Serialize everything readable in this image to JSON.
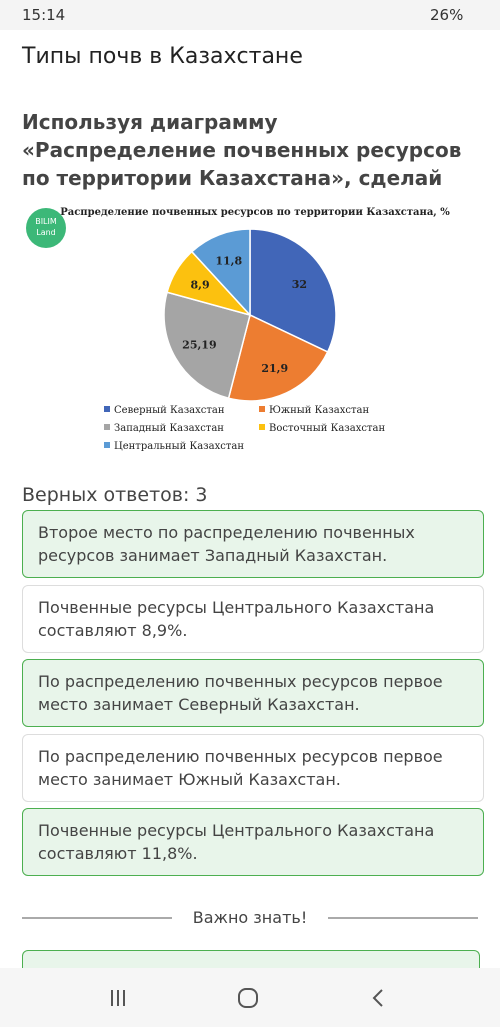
{
  "status": {
    "time": "15:14",
    "battery": "26%"
  },
  "header": {
    "title": "Типы почв в Казахстане"
  },
  "question": "Используя диаграмму «Распределение почвенных ресурсов по территории Казахстана», сделай вывод.",
  "logo": {
    "line1": "BILIM",
    "line2": "Land"
  },
  "chart_data": {
    "type": "pie",
    "title": "Распределение почвенных ресурсов по территории Казахстана, %",
    "categories": [
      "Северный Казахстан",
      "Южный Казахстан",
      "Западный Казахстан",
      "Восточный Казахстан",
      "Центральный Казахстан"
    ],
    "values": [
      32,
      21.9,
      25.19,
      8.9,
      11.8
    ],
    "value_labels": [
      "32",
      "21,9",
      "25,19",
      "8,9",
      "11,8"
    ],
    "colors": [
      "#4166b8",
      "#ed7d31",
      "#a5a5a5",
      "#fcc10f",
      "#5b9bd5"
    ]
  },
  "correct_count": "Верных ответов: 3",
  "answers": [
    {
      "text": "Второе место по распределению почвенных ресурсов занимает Западный Казахстан.",
      "selected": true
    },
    {
      "text": "Почвенные ресурсы Центрального Казахстана составляют 8,9%.",
      "selected": false
    },
    {
      "text": "По распределению почвенных ресурсов первое место занимает Северный Казахстан.",
      "selected": true
    },
    {
      "text": "По распределению почвенных ресурсов первое место занимает Южный Казахстан.",
      "selected": false
    },
    {
      "text": "Почвенные ресурсы Центрального Казахстана составляют 11,8%.",
      "selected": true
    }
  ],
  "section": "Важно знать!"
}
